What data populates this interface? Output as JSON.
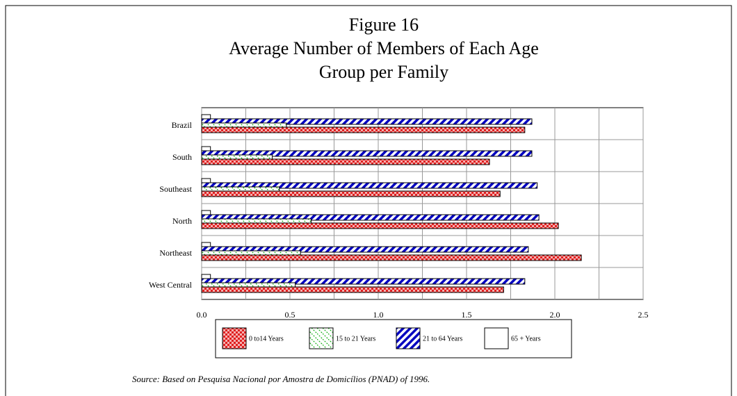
{
  "chart_data": {
    "type": "hbar",
    "title": [
      "Figure 16",
      "Average Number of Members of Each Age",
      "Group per Family"
    ],
    "categories": [
      "Brazil",
      "South",
      "Southeast",
      "North",
      "Northeast",
      "West Central"
    ],
    "series": [
      {
        "name": "0 to14 Years",
        "color": "#e02020",
        "pattern": "check",
        "values": [
          1.83,
          1.63,
          1.69,
          2.02,
          2.15,
          1.71
        ]
      },
      {
        "name": "15 to 21 Years",
        "color": "#10b010",
        "pattern": "diag",
        "values": [
          0.48,
          0.4,
          0.44,
          0.62,
          0.56,
          0.53
        ]
      },
      {
        "name": "21 to 64 Years",
        "color": "#0000c0",
        "pattern": "stripe",
        "values": [
          1.87,
          1.87,
          1.9,
          1.91,
          1.85,
          1.83
        ]
      },
      {
        "name": "65 + Years",
        "color": "#ffffff",
        "pattern": "none",
        "values": [
          0.05,
          0.05,
          0.05,
          0.05,
          0.05,
          0.05
        ]
      }
    ],
    "xlim": [
      0,
      2.5
    ],
    "xticks": [
      {
        "value": 0,
        "label": "0.0"
      },
      {
        "value": 0.5,
        "label": "0.5"
      },
      {
        "value": 1,
        "label": "1.0"
      },
      {
        "value": 1.5,
        "label": "1.5"
      },
      {
        "value": 2,
        "label": "2.0"
      },
      {
        "value": 2.5,
        "label": "2.5"
      }
    ],
    "xgrid": [
      0.25,
      0.75,
      1.25,
      1.75,
      2.25
    ],
    "grid": true,
    "legend": "bottom",
    "source": "Source: Based on Pesquisa Nacional por Amostra de Domicílios (PNAD) of 1996."
  }
}
